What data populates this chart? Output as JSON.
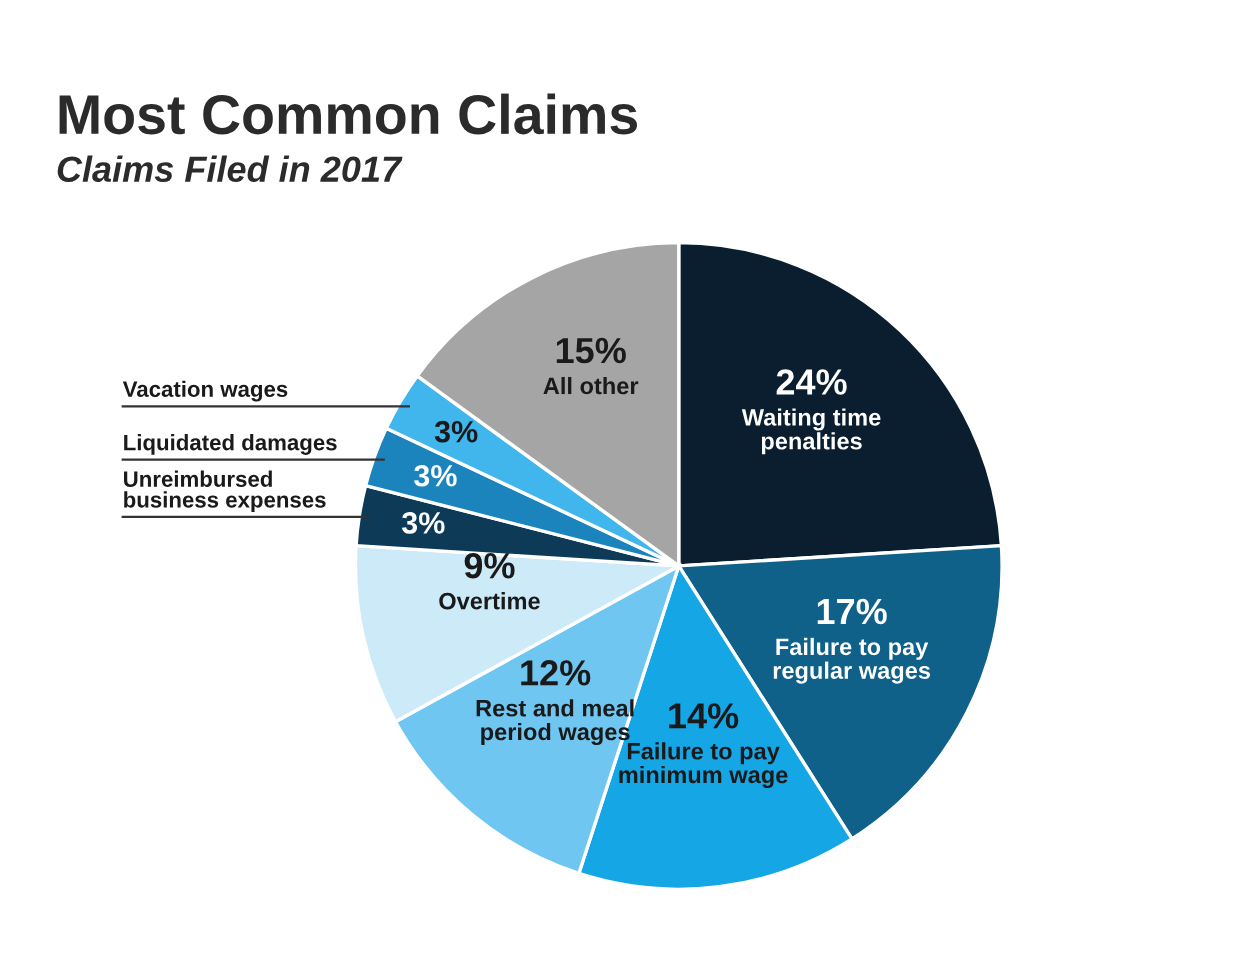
{
  "chart_data": {
    "type": "pie",
    "title": "Most Common Claims",
    "subtitle": "Claims Filed in 2017",
    "categories": [
      "Waiting time penalties",
      "Failure to pay regular wages",
      "Failure to pay minimum wage",
      "Rest and meal period wages",
      "Overtime",
      "Unreimbursed business expenses",
      "Liquidated damages",
      "Vacation wages",
      "All other"
    ],
    "values": [
      24,
      17,
      14,
      12,
      9,
      3,
      3,
      3,
      15
    ],
    "value_labels": [
      "24%",
      "17%",
      "14%",
      "12%",
      "9%",
      "3%",
      "3%",
      "3%",
      "15%"
    ],
    "colors": [
      "#0b1e30",
      "#0f6189",
      "#15a6e6",
      "#6fc6f0",
      "#cdeaf9",
      "#0c3a57",
      "#1c84bd",
      "#40b6ec",
      "#a5a5a5"
    ],
    "legend": false
  }
}
